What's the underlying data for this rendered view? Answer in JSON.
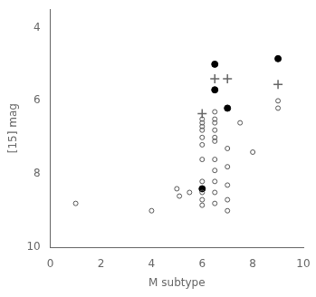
{
  "chart_data": {
    "type": "scatter",
    "xlabel": "M subtype",
    "ylabel": "[15] mag",
    "xlim": [
      0,
      10
    ],
    "ylim": [
      10,
      3.5
    ],
    "xticks": [
      0,
      2,
      4,
      6,
      8,
      10
    ],
    "yticks": [
      4,
      6,
      8,
      10
    ],
    "grid": false,
    "series": [
      {
        "marker": "open_circle",
        "color": "#555555",
        "x": [
          1.0,
          4.0,
          5.0,
          5.1,
          5.5,
          6.0,
          6.0,
          6.0,
          6.0,
          6.0,
          6.0,
          6.0,
          6.0,
          6.0,
          6.0,
          6.0,
          6.5,
          6.5,
          6.5,
          6.5,
          6.5,
          6.5,
          6.5,
          6.5,
          6.5,
          6.5,
          6.5,
          7.0,
          7.0,
          7.0,
          7.0,
          7.0,
          7.5,
          8.0,
          9.0,
          9.0
        ],
        "values": [
          8.8,
          9.0,
          8.4,
          8.6,
          8.5,
          6.5,
          6.6,
          6.7,
          6.8,
          7.0,
          7.2,
          7.6,
          8.2,
          8.5,
          8.7,
          8.85,
          6.3,
          6.5,
          6.6,
          6.8,
          7.0,
          7.1,
          7.6,
          7.9,
          8.2,
          8.5,
          8.8,
          7.3,
          7.8,
          8.3,
          8.7,
          9.0,
          6.6,
          7.4,
          6.0,
          6.2
        ]
      },
      {
        "marker": "circle",
        "color": "#000000",
        "x": [
          6.0,
          6.5,
          6.5,
          7.0,
          9.0
        ],
        "values": [
          8.4,
          5.0,
          5.7,
          6.2,
          4.85
        ]
      },
      {
        "marker": "plus",
        "color": "#666666",
        "x": [
          6.0,
          6.5,
          7.0,
          9.0
        ],
        "values": [
          6.35,
          5.4,
          5.4,
          5.55
        ]
      }
    ]
  }
}
